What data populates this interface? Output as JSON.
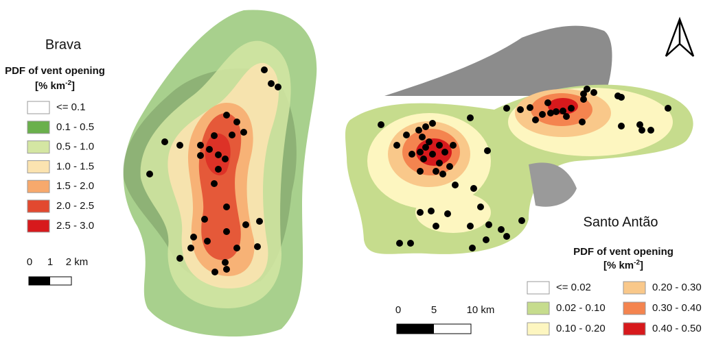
{
  "brava": {
    "title": "Brava",
    "legend": {
      "title": "PDF of vent opening",
      "unit": {
        "base": "[% km",
        "sup": "-2",
        "end": "]"
      },
      "items": [
        {
          "label": "<= 0.1",
          "color": "#ffffff"
        },
        {
          "label": "0.1 - 0.5",
          "color": "#6ab04c"
        },
        {
          "label": "0.5 - 1.0",
          "color": "#d4e6a3"
        },
        {
          "label": "1.0 - 1.5",
          "color": "#fbe3b0"
        },
        {
          "label": "1.5 - 2.0",
          "color": "#f7a96c"
        },
        {
          "label": "2.0 - 2.5",
          "color": "#e2492f"
        },
        {
          "label": "2.5 - 3.0",
          "color": "#d7191c"
        }
      ]
    },
    "scale": [
      "0",
      "1",
      "2 km"
    ]
  },
  "santo_antao": {
    "title": "Santo Antão",
    "legend": {
      "title": "PDF of vent opening",
      "unit": {
        "base": "[% km",
        "sup": "-2",
        "end": "]"
      },
      "items": [
        {
          "label": "<= 0.02",
          "color": "#ffffff"
        },
        {
          "label": "0.02 - 0.10",
          "color": "#c6dc8d"
        },
        {
          "label": "0.10 - 0.20",
          "color": "#fdf6c0"
        },
        {
          "label": "0.20 - 0.30",
          "color": "#f9c88a"
        },
        {
          "label": "0.30 - 0.40",
          "color": "#f4844f"
        },
        {
          "label": "0.40 - 0.50",
          "color": "#d7191c"
        }
      ]
    },
    "scale": [
      "0",
      "5",
      "10 km"
    ]
  }
}
